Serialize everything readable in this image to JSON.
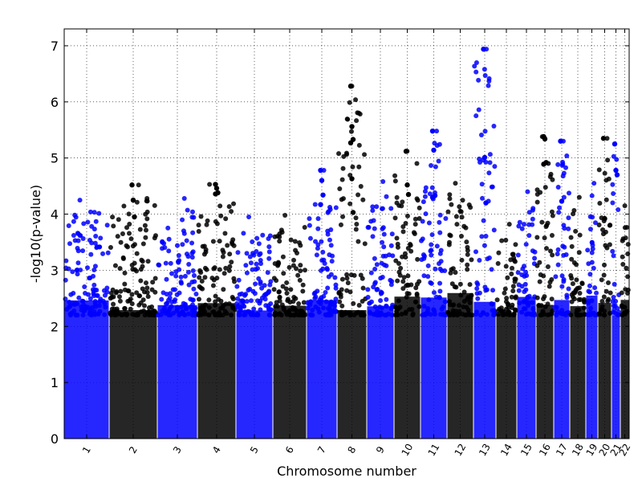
{
  "chart_data": {
    "type": "scatter",
    "subtype": "manhattan",
    "title": "",
    "xlabel": "Chromosome number",
    "ylabel": "-log10(p-value)",
    "ylim": [
      0,
      7.3
    ],
    "yticks": [
      0,
      1,
      2,
      3,
      4,
      5,
      6,
      7
    ],
    "grid": true,
    "grid_style": "dotted",
    "legend": "none",
    "colors": {
      "odd": "#0000ff",
      "even": "#000000"
    },
    "chromosomes": [
      {
        "label": "1",
        "x_start": 0,
        "x_end": 56,
        "color": "#0000ff",
        "peak": 4.25
      },
      {
        "label": "2",
        "x_start": 56,
        "x_end": 116,
        "color": "#000000",
        "peak": 4.52
      },
      {
        "label": "3",
        "x_start": 116,
        "x_end": 166,
        "color": "#0000ff",
        "peak": 4.28
      },
      {
        "label": "4",
        "x_start": 166,
        "x_end": 214,
        "color": "#000000",
        "peak": 4.53
      },
      {
        "label": "5",
        "x_start": 214,
        "x_end": 260,
        "color": "#0000ff",
        "peak": 3.95
      },
      {
        "label": "6",
        "x_start": 260,
        "x_end": 302,
        "color": "#000000",
        "peak": 3.98
      },
      {
        "label": "7",
        "x_start": 302,
        "x_end": 340,
        "color": "#0000ff",
        "peak": 4.78
      },
      {
        "label": "8",
        "x_start": 340,
        "x_end": 377,
        "color": "#000000",
        "peak": 6.28
      },
      {
        "label": "9",
        "x_start": 377,
        "x_end": 411,
        "color": "#0000ff",
        "peak": 4.58
      },
      {
        "label": "10",
        "x_start": 411,
        "x_end": 444,
        "color": "#000000",
        "peak": 5.12
      },
      {
        "label": "11",
        "x_start": 444,
        "x_end": 477,
        "color": "#0000ff",
        "peak": 5.48
      },
      {
        "label": "12",
        "x_start": 477,
        "x_end": 510,
        "color": "#000000",
        "peak": 4.55
      },
      {
        "label": "13",
        "x_start": 510,
        "x_end": 538,
        "color": "#0000ff",
        "peak": 6.94
      },
      {
        "label": "14",
        "x_start": 538,
        "x_end": 564,
        "color": "#000000",
        "peak": 3.82
      },
      {
        "label": "15",
        "x_start": 564,
        "x_end": 588,
        "color": "#0000ff",
        "peak": 4.4
      },
      {
        "label": "16",
        "x_start": 588,
        "x_end": 610,
        "color": "#000000",
        "peak": 5.38
      },
      {
        "label": "17",
        "x_start": 610,
        "x_end": 630,
        "color": "#0000ff",
        "peak": 5.3
      },
      {
        "label": "18",
        "x_start": 630,
        "x_end": 650,
        "color": "#000000",
        "peak": 4.3
      },
      {
        "label": "19",
        "x_start": 650,
        "x_end": 665,
        "color": "#0000ff",
        "peak": 4.55
      },
      {
        "label": "20",
        "x_start": 665,
        "x_end": 682,
        "color": "#000000",
        "peak": 5.35
      },
      {
        "label": "21",
        "x_start": 682,
        "x_end": 693,
        "color": "#0000ff",
        "peak": 5.25
      },
      {
        "label": "22",
        "x_start": 693,
        "x_end": 704,
        "color": "#000000",
        "peak": 4.15
      }
    ],
    "highlights": [
      {
        "chromosome": "8",
        "values": [
          6.28,
          5.56,
          5.33,
          5.27,
          4.63,
          4.03
        ]
      },
      {
        "chromosome": "13",
        "values": [
          6.94,
          5.01,
          4.2
        ]
      },
      {
        "chromosome": "11",
        "values": [
          5.48,
          5.14,
          4.33,
          4.3
        ]
      },
      {
        "chromosome": "16",
        "values": [
          5.38,
          5.34,
          4.92,
          4.89
        ]
      },
      {
        "chromosome": "20",
        "values": [
          5.35,
          3.92
        ]
      },
      {
        "chromosome": "21",
        "values": [
          5.25,
          4.78,
          4.7
        ]
      },
      {
        "chromosome": "17",
        "values": [
          5.3,
          4.23
        ]
      },
      {
        "chromosome": "10",
        "values": [
          5.12,
          4.52,
          4.35
        ]
      },
      {
        "chromosome": "4",
        "values": [
          4.53,
          4.46,
          4.38,
          4.36
        ]
      },
      {
        "chromosome": "2",
        "values": [
          4.52,
          4.25,
          3.95
        ]
      },
      {
        "chromosome": "7",
        "values": [
          4.78,
          4.6,
          4.34,
          4.17
        ]
      }
    ]
  }
}
